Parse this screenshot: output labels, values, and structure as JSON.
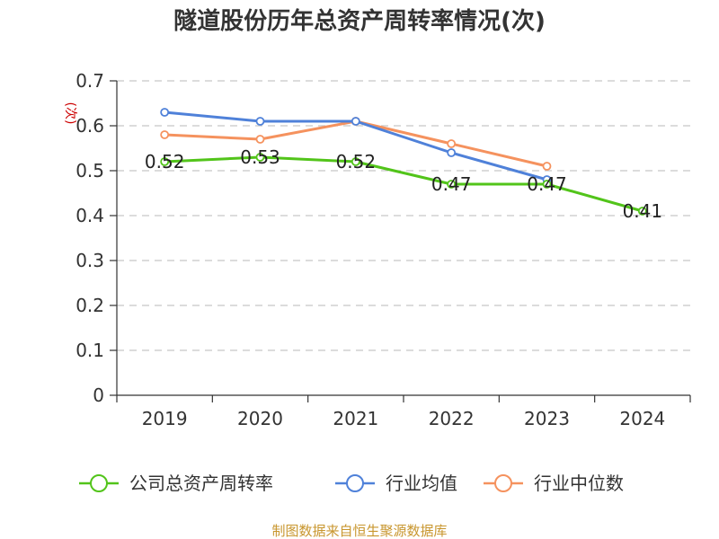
{
  "chart_data": {
    "type": "line",
    "title": "隧道股份历年总资产周转率情况(次)",
    "ylabel": "(次)",
    "xlabel": "",
    "categories": [
      "2019",
      "2020",
      "2021",
      "2022",
      "2023",
      "2024"
    ],
    "ylim": [
      0,
      0.7
    ],
    "yticks": [
      0,
      0.1,
      0.2,
      0.3,
      0.4,
      0.5,
      0.6,
      0.7
    ],
    "ytick_labels": [
      "0",
      "0.1",
      "0.2",
      "0.3",
      "0.4",
      "0.5",
      "0.6",
      "0.7"
    ],
    "grid": true,
    "legend_position": "bottom",
    "series": [
      {
        "name": "公司总资产周转率",
        "color": "#52c41a",
        "values": [
          0.52,
          0.53,
          0.52,
          0.47,
          0.47,
          0.41
        ],
        "data_labels": [
          "0.52",
          "0.53",
          "0.52",
          "0.47",
          "0.47",
          "0.41"
        ]
      },
      {
        "name": "行业均值",
        "color": "#4f81d9",
        "values": [
          0.63,
          0.61,
          0.61,
          0.54,
          0.48,
          null
        ]
      },
      {
        "name": "行业中位数",
        "color": "#f5925e",
        "values": [
          0.58,
          0.57,
          0.61,
          0.56,
          0.51,
          null
        ]
      }
    ]
  },
  "source": {
    "text": "制图数据来自恒生聚源数据库",
    "color": "#c8962e"
  }
}
